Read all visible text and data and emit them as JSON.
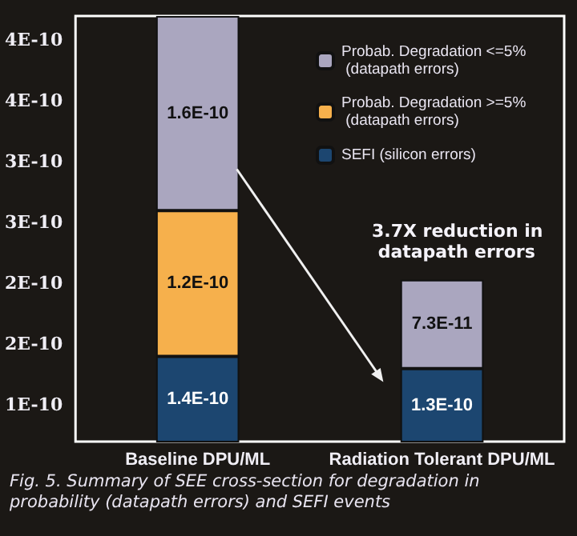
{
  "chart_data": {
    "type": "bar",
    "stacked": true,
    "categories": [
      "Baseline DPU/ML",
      "Radiation Tolerant DPU/ML"
    ],
    "series": [
      {
        "name": "SEFI (silicon errors)",
        "color": "#1c4670",
        "values": [
          1.4e-10,
          1.3e-10
        ],
        "value_labels": [
          "1.4E-10",
          "1.3E-10"
        ]
      },
      {
        "name": "Probab. Degradation >=5% (datapath errors)",
        "color": "#f6b04c",
        "values": [
          1.2e-10,
          null
        ],
        "value_labels": [
          "1.2E-10",
          null
        ]
      },
      {
        "name": "Probab. Degradation <=5% (datapath errors)",
        "color": "#aaa6bf",
        "values": [
          1.6e-10,
          7.3e-11
        ],
        "value_labels": [
          "1.6E-10",
          "7.3E-11"
        ]
      }
    ],
    "ylim": [
      7e-11,
      4.2e-10
    ],
    "yticks": [
      {
        "value": 1e-10,
        "label": "1E-10"
      },
      {
        "value": 1.5e-10,
        "label": "2E-10"
      },
      {
        "value": 2e-10,
        "label": "2E-10"
      },
      {
        "value": 2.5e-10,
        "label": "3E-10"
      },
      {
        "value": 3e-10,
        "label": "3E-10"
      },
      {
        "value": 3.5e-10,
        "label": "4E-10"
      },
      {
        "value": 4e-10,
        "label": "4E-10"
      }
    ],
    "legend": "top right",
    "grid": false,
    "annotations": [
      "3.7X reduction in datapath errors",
      "Fig. 5. Summary of SEE cross-section for degradation in probability (datapath errors) and SEFI events"
    ]
  }
}
